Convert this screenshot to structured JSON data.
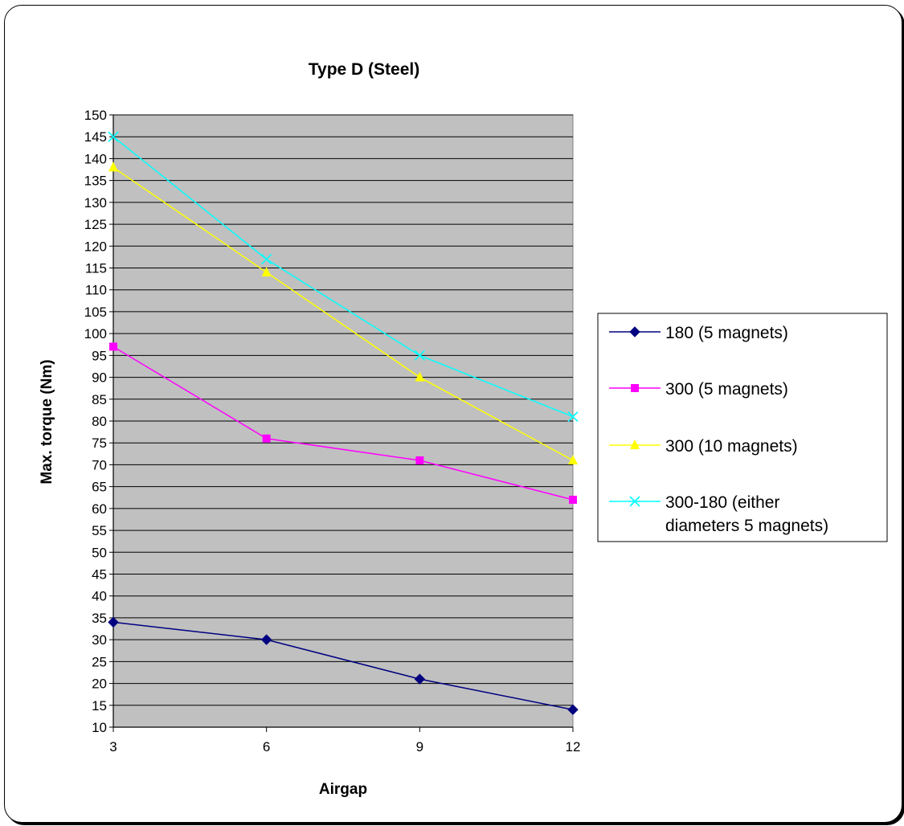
{
  "chart_data": {
    "type": "line",
    "title": "Type D (Steel)",
    "xlabel": "Airgap",
    "ylabel": "Max. torque (Nm)",
    "x": [
      3,
      6,
      9,
      12
    ],
    "x_tick_labels": [
      "3",
      "6",
      "9",
      "12"
    ],
    "ylim": [
      10,
      150
    ],
    "y_tick_step": 5,
    "y_tick_labels": [
      "10",
      "15",
      "20",
      "25",
      "30",
      "35",
      "40",
      "45",
      "50",
      "55",
      "60",
      "65",
      "70",
      "75",
      "80",
      "85",
      "90",
      "95",
      "100",
      "105",
      "110",
      "115",
      "120",
      "125",
      "130",
      "135",
      "140",
      "145",
      "150"
    ],
    "grid": true,
    "plot_background": "#c0c0c0",
    "legend_position": "right",
    "series": [
      {
        "name": "180 (5 magnets)",
        "legend_lines": [
          "180 (5 magnets)"
        ],
        "values": [
          34,
          30,
          21,
          14
        ],
        "color": "#000080",
        "marker": "diamond"
      },
      {
        "name": "300 (5 magnets)",
        "legend_lines": [
          "300 (5 magnets)"
        ],
        "values": [
          97,
          76,
          71,
          62
        ],
        "color": "#ff00ff",
        "marker": "square"
      },
      {
        "name": "300 (10 magnets)",
        "legend_lines": [
          "300 (10 magnets)"
        ],
        "values": [
          138,
          114,
          90,
          71
        ],
        "color": "#ffff00",
        "marker": "triangle"
      },
      {
        "name": "300-180 (either diameters 5 magnets)",
        "legend_lines": [
          "300-180 (either",
          "diameters 5 magnets)"
        ],
        "values": [
          145,
          117,
          95,
          81
        ],
        "color": "#00ffff",
        "marker": "x"
      }
    ]
  }
}
